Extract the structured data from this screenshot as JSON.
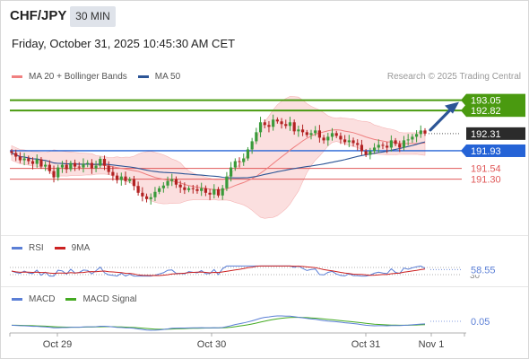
{
  "header": {
    "pair": "CHF/JPY",
    "timeframe": "30 MIN",
    "timestamp": "Friday, October 31, 2025 10:45:30 AM CET",
    "copyright": "Research © 2025 Trading Central"
  },
  "legends": {
    "price": [
      {
        "label": "MA 20 + Bollinger Bands",
        "color": "#f08080"
      },
      {
        "label": "MA 50",
        "color": "#2c5596"
      }
    ],
    "rsi": [
      {
        "label": "RSI",
        "color": "#5b7fd6"
      },
      {
        "label": "9MA",
        "color": "#cc2222"
      }
    ],
    "macd": [
      {
        "label": "MACD",
        "color": "#5b7fd6"
      },
      {
        "label": "MACD Signal",
        "color": "#44aa22"
      }
    ]
  },
  "colors": {
    "up": "#3a9a3a",
    "down": "#b22222",
    "target": "#4a9a10",
    "pivot": "#2563d6",
    "support": "#e05a5a",
    "band": "#fad4d4",
    "arrow": "#2c5596"
  },
  "chart_data": {
    "type": "candlestick",
    "x_ticks": [
      "Oct 29",
      "Oct 30",
      "Oct 31",
      "Nov 1"
    ],
    "price_levels": [
      {
        "label": "193.05",
        "value": 193.05,
        "kind": "target"
      },
      {
        "label": "192.82",
        "value": 192.82,
        "kind": "target"
      },
      {
        "label": "192.31",
        "value": 192.31,
        "kind": "last"
      },
      {
        "label": "191.93",
        "value": 191.93,
        "kind": "pivot"
      },
      {
        "label": "191.54",
        "value": 191.54,
        "kind": "support"
      },
      {
        "label": "191.30",
        "value": 191.3,
        "kind": "support"
      }
    ],
    "ylim": [
      190.3,
      193.4
    ],
    "closes": [
      191.88,
      191.8,
      191.72,
      191.76,
      191.7,
      191.64,
      191.74,
      191.58,
      191.62,
      191.48,
      191.34,
      191.56,
      191.62,
      191.52,
      191.66,
      191.58,
      191.56,
      191.64,
      191.66,
      191.54,
      191.6,
      191.75,
      191.6,
      191.46,
      191.38,
      191.28,
      191.36,
      191.26,
      191.3,
      191.15,
      191.0,
      190.92,
      190.86,
      190.9,
      191.02,
      191.1,
      191.16,
      191.26,
      191.3,
      191.18,
      191.12,
      191.06,
      191.1,
      191.08,
      191.04,
      191.1,
      191.0,
      190.96,
      191.08,
      190.94,
      191.1,
      191.36,
      191.56,
      191.7,
      191.68,
      191.76,
      191.96,
      192.14,
      192.34,
      192.56,
      192.5,
      192.46,
      192.62,
      192.58,
      192.52,
      192.48,
      192.56,
      192.36,
      192.4,
      192.34,
      192.28,
      192.32,
      192.38,
      192.22,
      192.16,
      192.24,
      192.32,
      192.26,
      192.18,
      192.12,
      192.16,
      192.1,
      192.06,
      191.92,
      191.84,
      191.92,
      192.0,
      192.06,
      192.04,
      192.0,
      192.16,
      192.08,
      192.0,
      192.16,
      192.18,
      192.24,
      192.3,
      192.38,
      192.31
    ],
    "rsi": {
      "levels": [
        70,
        30
      ],
      "value_label": "58.55",
      "value": 58.55
    },
    "macd": {
      "value_label": "0.05",
      "value": 0.05
    }
  }
}
